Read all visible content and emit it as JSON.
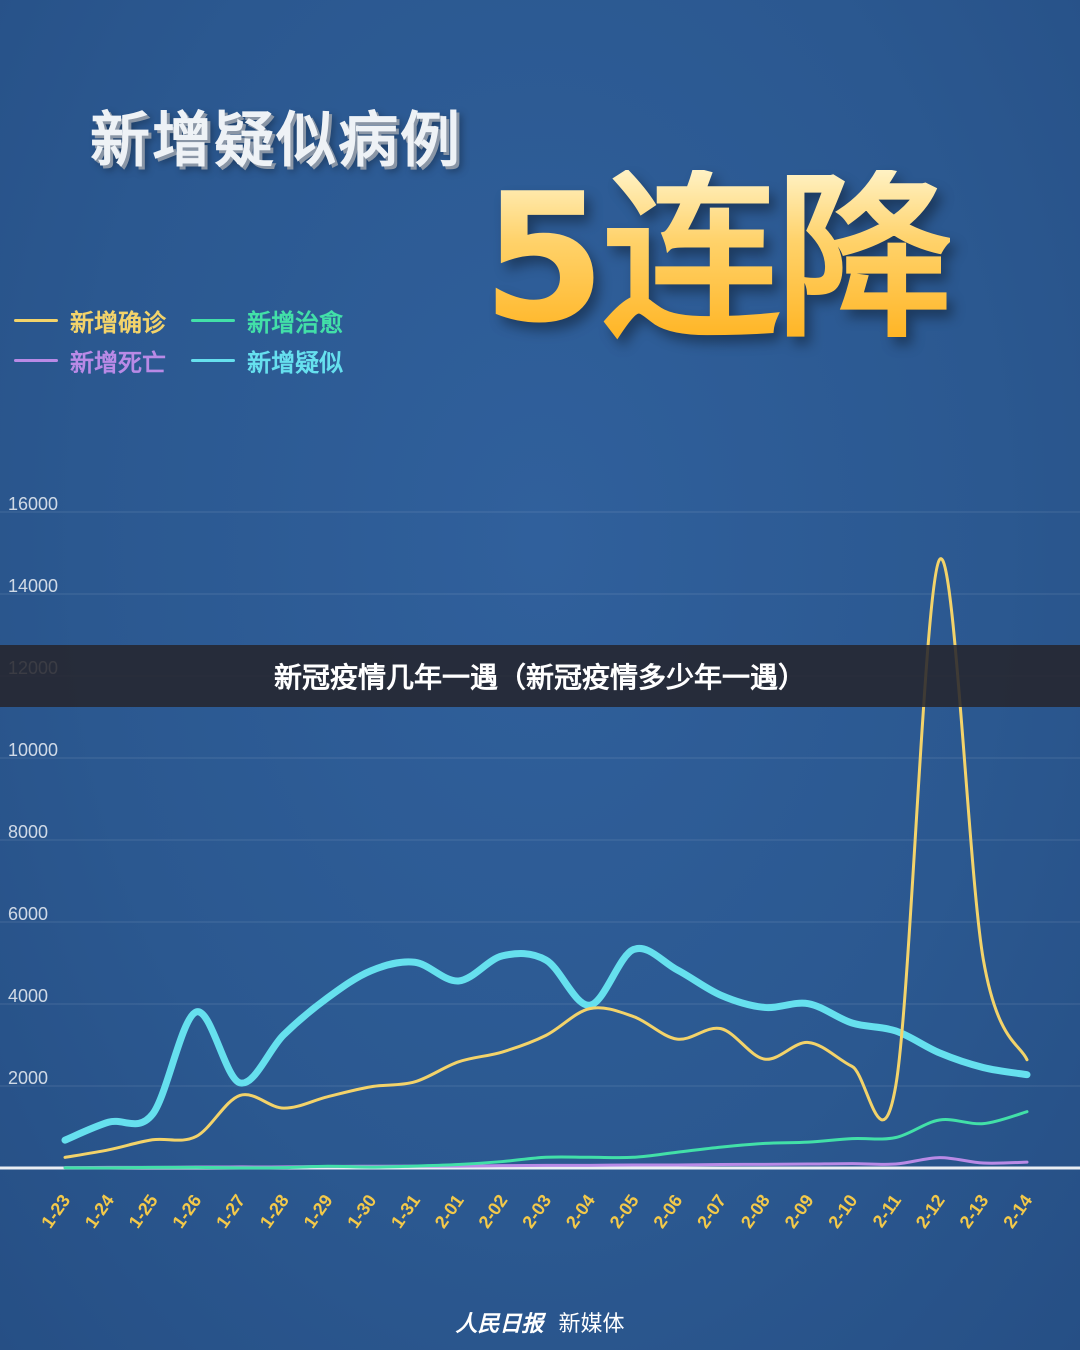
{
  "header": {
    "title": "新增疑似病例",
    "subtitle": "5连降"
  },
  "banner": {
    "text": "新冠疫情几年一遇（新冠疫情多少年一遇）"
  },
  "footer": {
    "logo": "人民日报",
    "text": "新媒体"
  },
  "chart_data": {
    "type": "line",
    "title": "新增疑似病例",
    "ylim": [
      0,
      16000
    ],
    "yticks": [
      2000,
      4000,
      6000,
      8000,
      10000,
      12000,
      14000,
      16000
    ],
    "grid": true,
    "legend_position": "top-left",
    "categories": [
      "1-23",
      "1-24",
      "1-25",
      "1-26",
      "1-27",
      "1-28",
      "1-29",
      "1-30",
      "1-31",
      "2-01",
      "2-02",
      "2-03",
      "2-04",
      "2-05",
      "2-06",
      "2-07",
      "2-08",
      "2-09",
      "2-10",
      "2-11",
      "2-12",
      "2-13",
      "2-14"
    ],
    "series": [
      {
        "name": "新增确诊",
        "color": "#f3d36a",
        "width": 3,
        "values": [
          259,
          444,
          688,
          769,
          1771,
          1459,
          1737,
          1982,
          2102,
          2590,
          2829,
          3235,
          3887,
          3694,
          3143,
          3399,
          2656,
          3062,
          2478,
          2015,
          14840,
          5090,
          2641
        ]
      },
      {
        "name": "新增治愈",
        "color": "#42e0a8",
        "width": 3,
        "values": [
          6,
          3,
          15,
          15,
          2,
          9,
          43,
          21,
          47,
          85,
          157,
          262,
          262,
          261,
          385,
          510,
          600,
          632,
          716,
          744,
          1171,
          1081,
          1373
        ]
      },
      {
        "name": "新增死亡",
        "color": "#b98ae6",
        "width": 3,
        "values": [
          8,
          16,
          15,
          24,
          26,
          26,
          38,
          43,
          46,
          45,
          57,
          64,
          65,
          73,
          73,
          86,
          89,
          97,
          108,
          97,
          254,
          121,
          143
        ]
      },
      {
        "name": "新增疑似",
        "color": "#66e0ee",
        "width": 7,
        "values": [
          680,
          1118,
          1309,
          3806,
          2077,
          3248,
          4148,
          4812,
          5019,
          4562,
          5173,
          5072,
          3971,
          5328,
          4833,
          4214,
          3916,
          4008,
          3536,
          3342,
          2807,
          2450,
          2277
        ]
      }
    ]
  }
}
